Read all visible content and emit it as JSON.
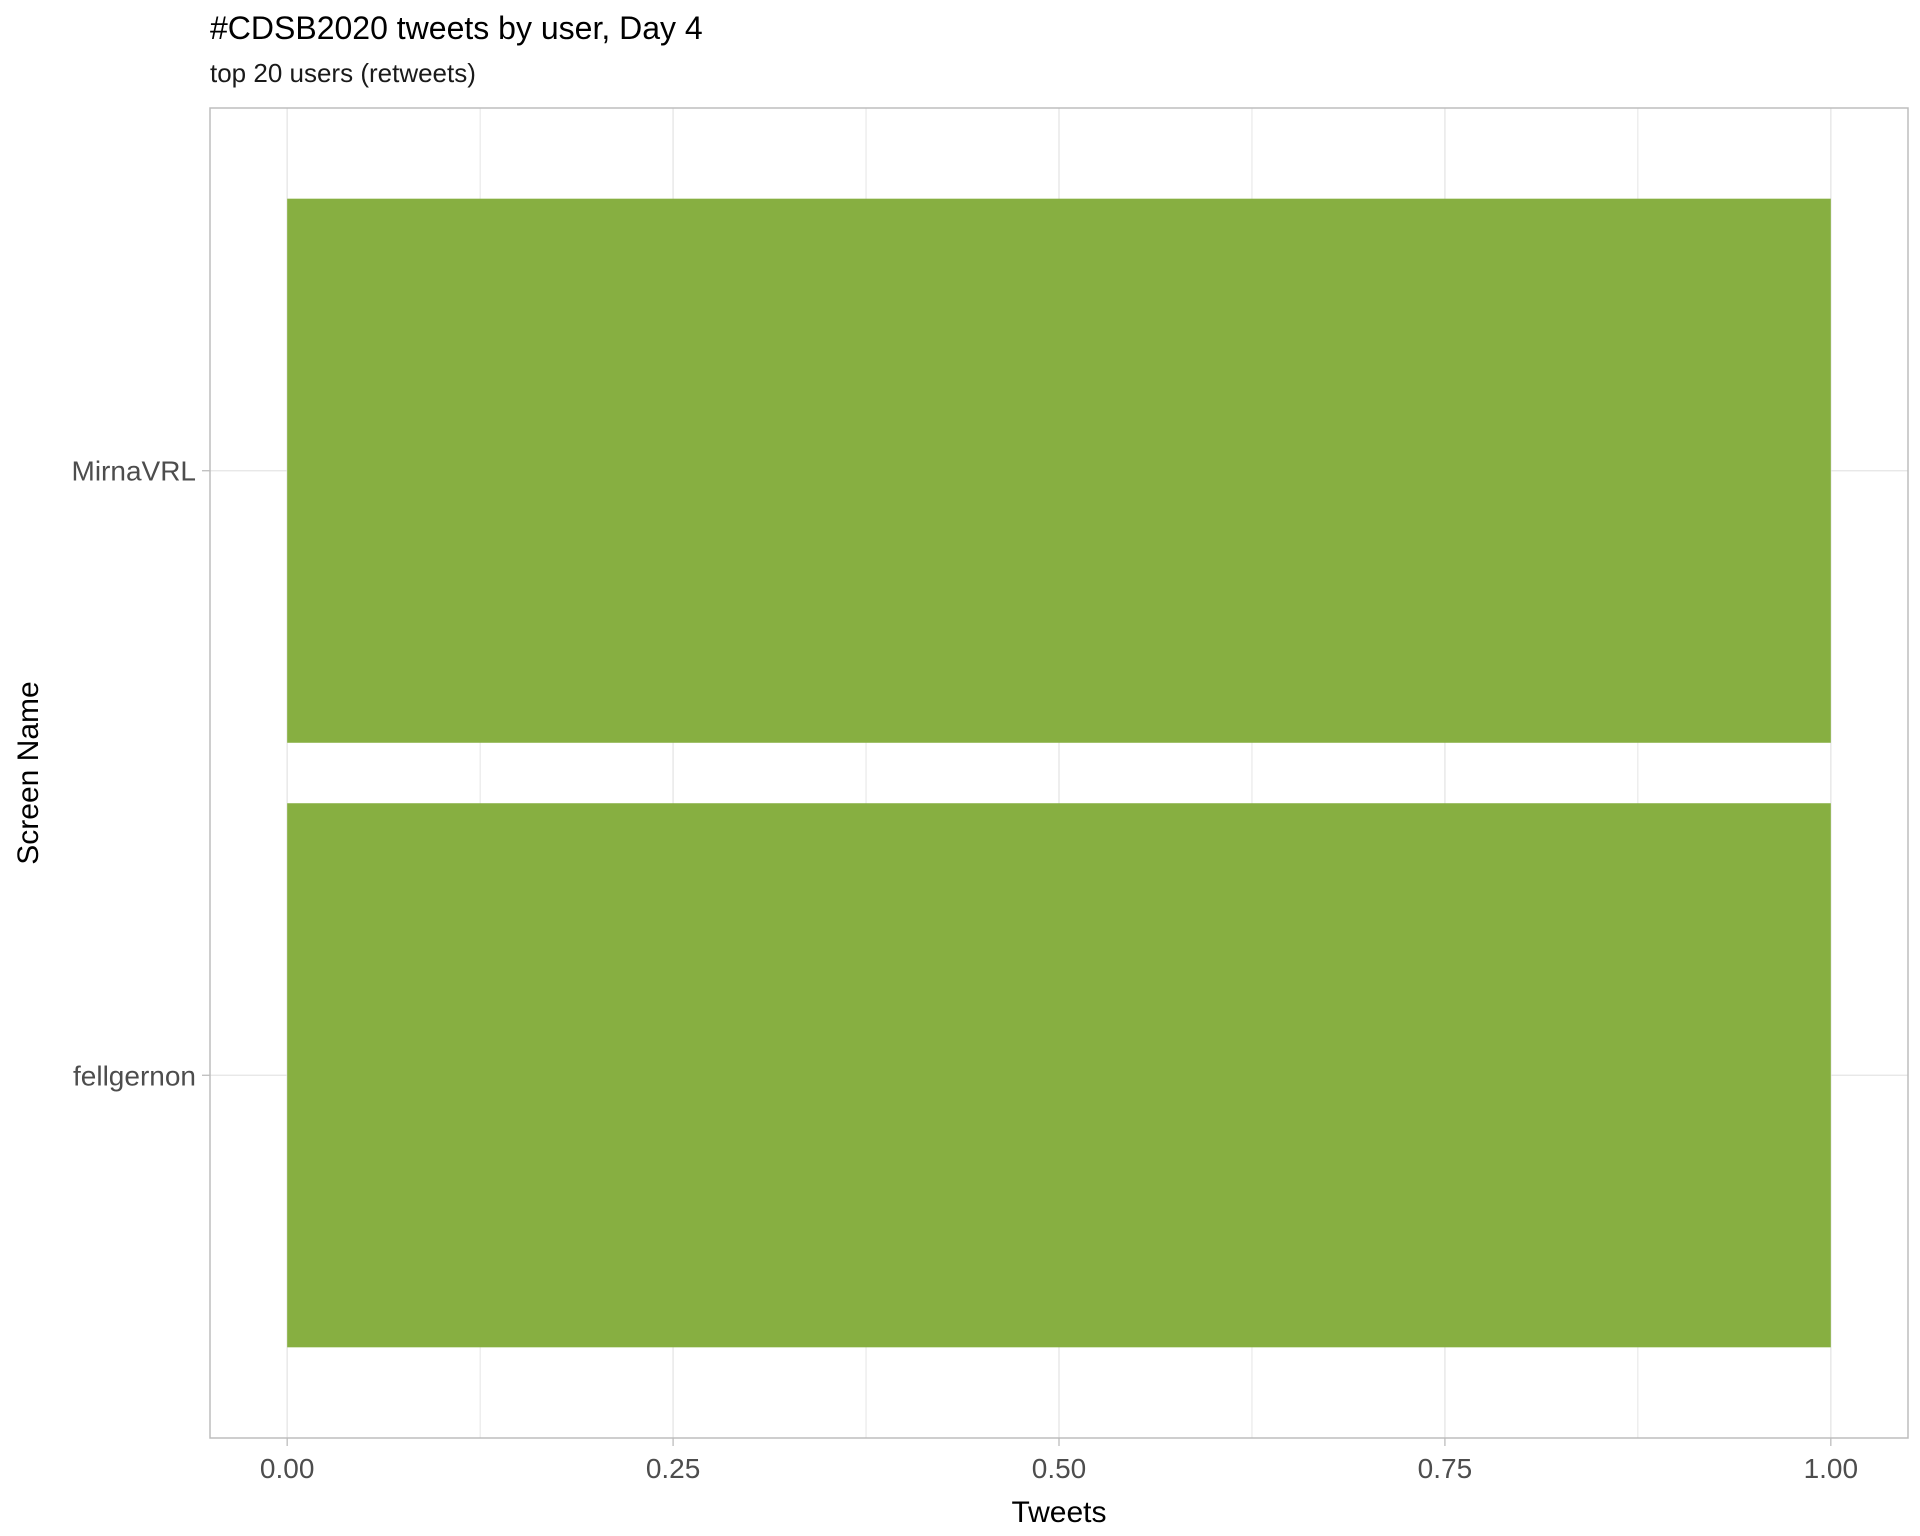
{
  "chart_data": {
    "type": "bar",
    "orientation": "horizontal",
    "title": "#CDSB2020 tweets by user, Day 4",
    "subtitle": "top 20 users (retweets)",
    "xlabel": "Tweets",
    "ylabel": "Screen Name",
    "categories": [
      "MirnaVRL",
      "fellgernon"
    ],
    "values": [
      1,
      1
    ],
    "xlim": [
      -0.05,
      1.05
    ],
    "x_ticks": [
      0,
      0.25,
      0.5,
      0.75,
      1.0
    ],
    "x_tick_labels": [
      "0.00",
      "0.25",
      "0.50",
      "0.75",
      "1.00"
    ],
    "grid": true,
    "legend": "none",
    "colors": {
      "bar": "#87AF41",
      "grid": "#e5e5e5",
      "panel_border": "#bdbdbd",
      "tick": "#bdbdbd"
    }
  }
}
